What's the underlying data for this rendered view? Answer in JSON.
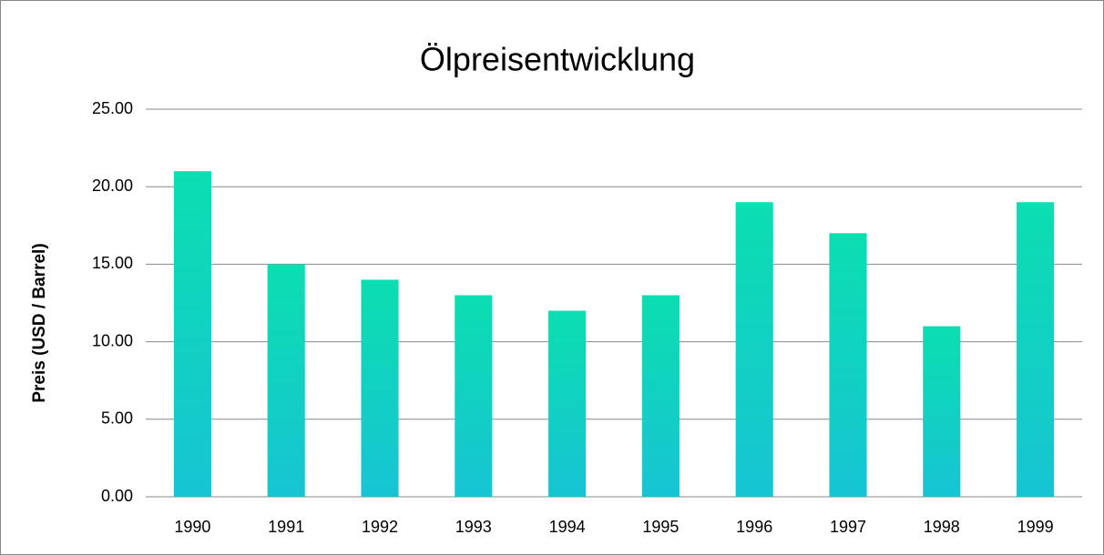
{
  "chart_data": {
    "type": "bar",
    "title": "Ölpreisentwicklung",
    "y_label": "Preis (USD / Barrel)",
    "categories": [
      "1990",
      "1991",
      "1992",
      "1993",
      "1994",
      "1995",
      "1996",
      "1997",
      "1998",
      "1999"
    ],
    "values": [
      21,
      15,
      14,
      13,
      12,
      13,
      19,
      17,
      11,
      19
    ],
    "gradient": [
      "#0bdeb0",
      "#17c4d4"
    ],
    "ylim": [
      0,
      25
    ],
    "yticks": [
      {
        "value": 0,
        "label": "0.00"
      },
      {
        "value": 5,
        "label": "5.00"
      },
      {
        "value": 10,
        "label": "10.00"
      },
      {
        "value": 15,
        "label": "15.00"
      },
      {
        "value": 20,
        "label": "20.00"
      },
      {
        "value": 25,
        "label": "25.00"
      }
    ],
    "grid": true
  }
}
